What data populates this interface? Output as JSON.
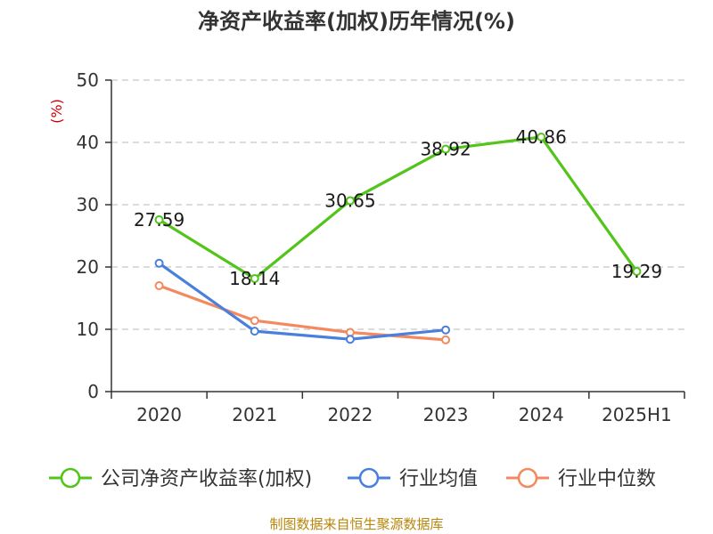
{
  "title": "净资产收益率(加权)历年情况(%)",
  "unit_label": "(%)",
  "source": "制图数据来自恒生聚源数据库",
  "colors": {
    "company": "#52c41a",
    "industry_avg": "#4a7fdc",
    "industry_median": "#f4895f",
    "axis": "#333333",
    "grid": "#c8c8c8",
    "source": "#b8860b",
    "unit": "#cc0000"
  },
  "chart_data": {
    "type": "line",
    "title": "净资产收益率(加权)历年情况(%)",
    "ylabel": "(%)",
    "xlabel": "",
    "categories": [
      "2020",
      "2021",
      "2022",
      "2023",
      "2024",
      "2025H1"
    ],
    "ylim": [
      0,
      50
    ],
    "yticks": [
      0,
      10,
      20,
      30,
      40,
      50
    ],
    "grid": true,
    "legend_position": "bottom",
    "series": [
      {
        "name": "公司净资产收益率(加权)",
        "color": "#52c41a",
        "values": [
          27.59,
          18.14,
          30.65,
          38.92,
          40.86,
          19.29
        ],
        "labels": [
          "27.59",
          "18.14",
          "30.65",
          "38.92",
          "40.86",
          "19.29"
        ]
      },
      {
        "name": "行业均值",
        "color": "#4a7fdc",
        "values": [
          20.6,
          9.7,
          8.4,
          9.9,
          null,
          null
        ]
      },
      {
        "name": "行业中位数",
        "color": "#f4895f",
        "values": [
          17.0,
          11.4,
          9.5,
          8.3,
          null,
          null
        ]
      }
    ]
  }
}
